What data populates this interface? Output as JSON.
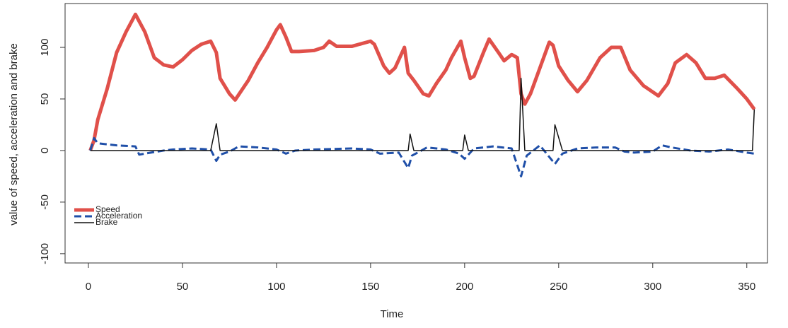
{
  "chart_data": {
    "type": "line",
    "x_label": "Time",
    "y_label": "value of speed, acceleration and brake",
    "xlim": [
      -12.4,
      361
    ],
    "ylim": [
      -109,
      142.5
    ],
    "xticks": [
      0,
      50,
      100,
      150,
      200,
      250,
      300,
      350
    ],
    "yticks": [
      -100,
      -50,
      0,
      50,
      100
    ],
    "legend": "bottom-left",
    "series": [
      {
        "name": "Speed",
        "color": "#e0504a",
        "dash": "solid",
        "width": 5,
        "x": [
          1,
          3,
          5,
          10,
          15,
          20,
          25,
          30,
          35,
          40,
          45,
          50,
          55,
          60,
          65,
          68,
          70,
          75,
          78,
          85,
          90,
          95,
          100,
          102,
          105,
          108,
          112,
          120,
          125,
          128,
          132,
          140,
          150,
          152,
          157,
          160,
          163,
          168,
          170,
          173,
          178,
          181,
          185,
          190,
          193,
          198,
          200,
          203,
          205,
          210,
          213,
          218,
          221,
          225,
          228,
          230,
          232,
          235,
          240,
          245,
          247,
          250,
          255,
          260,
          265,
          272,
          278,
          283,
          288,
          295,
          303,
          308,
          312,
          318,
          323,
          328,
          333,
          338,
          345,
          350,
          354
        ],
        "values": [
          0,
          10,
          30,
          60,
          95,
          115,
          132,
          115,
          90,
          83,
          81,
          88,
          97,
          103,
          106,
          95,
          70,
          55,
          49,
          68,
          85,
          100,
          117,
          122,
          110,
          96,
          96,
          97,
          100,
          106,
          101,
          101,
          106,
          103,
          82,
          75,
          80,
          100,
          75,
          68,
          55,
          53,
          65,
          78,
          90,
          106,
          90,
          70,
          72,
          95,
          108,
          95,
          87,
          93,
          90,
          55,
          45,
          55,
          80,
          105,
          102,
          82,
          68,
          57,
          68,
          90,
          100,
          100,
          78,
          63,
          53,
          65,
          85,
          93,
          85,
          70,
          70,
          73,
          60,
          50,
          40
        ]
      },
      {
        "name": "Acceleration",
        "color": "#1f4fa8",
        "dash": "dashed",
        "width": 3,
        "x": [
          1,
          3,
          5,
          15,
          25,
          27,
          30,
          40,
          45,
          55,
          65,
          68,
          70,
          75,
          80,
          90,
          100,
          105,
          110,
          120,
          140,
          150,
          155,
          165,
          170,
          172,
          180,
          190,
          197,
          200,
          205,
          215,
          225,
          230,
          233,
          240,
          248,
          252,
          260,
          270,
          280,
          285,
          290,
          300,
          305,
          310,
          320,
          330,
          340,
          350,
          354
        ],
        "values": [
          0,
          12,
          7,
          5,
          4,
          -4,
          -3,
          0,
          1,
          2,
          1,
          -10,
          -4,
          -1,
          4,
          3,
          1,
          -3,
          0,
          1,
          2,
          1,
          -3,
          -2,
          -17,
          -5,
          3,
          1,
          -3,
          -8,
          2,
          4,
          2,
          -25,
          -5,
          5,
          -13,
          -3,
          2,
          3,
          3,
          -1,
          -2,
          -1,
          5,
          3,
          0,
          -1,
          1,
          -2,
          -3
        ]
      },
      {
        "name": "Brake",
        "color": "#111111",
        "dash": "solid",
        "width": 1.5,
        "x": [
          1,
          65,
          68,
          70,
          170,
          171,
          173,
          199,
          200,
          202,
          229,
          230,
          232,
          247,
          248,
          252,
          353,
          354
        ],
        "values": [
          0,
          0,
          26,
          0,
          0,
          16,
          0,
          0,
          15,
          0,
          0,
          70,
          0,
          0,
          25,
          0,
          0,
          40
        ]
      }
    ]
  }
}
